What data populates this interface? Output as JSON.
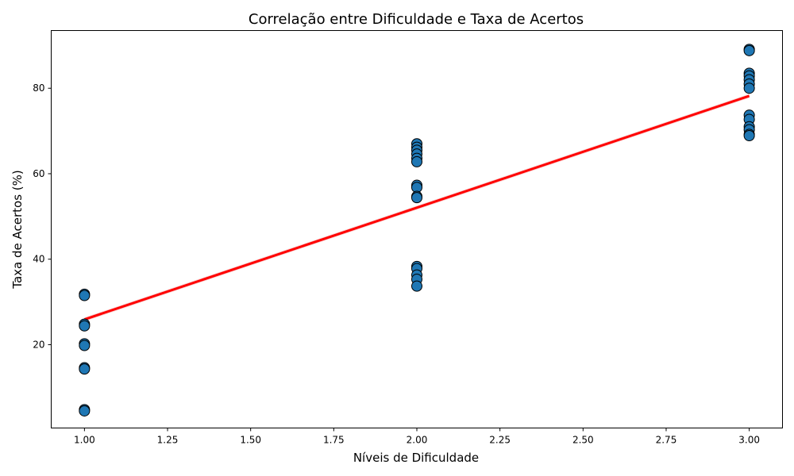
{
  "chart_data": {
    "type": "scatter",
    "title": "Correlação entre Dificuldade e Taxa de Acertos",
    "xlabel": "Níveis de Dificuldade",
    "ylabel": "Taxa de Acertos (%)",
    "xlim": [
      0.9,
      3.1
    ],
    "ylim": [
      0.5,
      93.5
    ],
    "xticks": [
      "1.00",
      "1.25",
      "1.50",
      "1.75",
      "2.00",
      "2.25",
      "2.50",
      "2.75",
      "3.00"
    ],
    "yticks": [
      "20",
      "40",
      "60",
      "80"
    ],
    "grid": false,
    "legend": "none",
    "colors": {
      "points": "#1f77b4",
      "point_edge": "#000000",
      "regression": "#ff0000",
      "confidence_band": "#f4b6b6"
    },
    "points": [
      {
        "x": 1,
        "y": 31.8
      },
      {
        "x": 1,
        "y": 31.5
      },
      {
        "x": 1,
        "y": 24.8
      },
      {
        "x": 1,
        "y": 24.4
      },
      {
        "x": 1,
        "y": 20.2
      },
      {
        "x": 1,
        "y": 19.8
      },
      {
        "x": 1,
        "y": 14.6
      },
      {
        "x": 1,
        "y": 14.3
      },
      {
        "x": 1,
        "y": 4.8
      },
      {
        "x": 1,
        "y": 4.5
      },
      {
        "x": 2,
        "y": 67.0
      },
      {
        "x": 2,
        "y": 66.2
      },
      {
        "x": 2,
        "y": 65.5
      },
      {
        "x": 2,
        "y": 64.6
      },
      {
        "x": 2,
        "y": 63.6
      },
      {
        "x": 2,
        "y": 62.8
      },
      {
        "x": 2,
        "y": 57.3
      },
      {
        "x": 2,
        "y": 56.8
      },
      {
        "x": 2,
        "y": 54.7
      },
      {
        "x": 2,
        "y": 54.4
      },
      {
        "x": 2,
        "y": 38.3
      },
      {
        "x": 2,
        "y": 37.8
      },
      {
        "x": 2,
        "y": 36.3
      },
      {
        "x": 2,
        "y": 35.3
      },
      {
        "x": 2,
        "y": 33.7
      },
      {
        "x": 3,
        "y": 89.1
      },
      {
        "x": 3,
        "y": 88.8
      },
      {
        "x": 3,
        "y": 83.5
      },
      {
        "x": 3,
        "y": 82.9
      },
      {
        "x": 3,
        "y": 82.0
      },
      {
        "x": 3,
        "y": 81.0
      },
      {
        "x": 3,
        "y": 80.0
      },
      {
        "x": 3,
        "y": 73.7
      },
      {
        "x": 3,
        "y": 72.7
      },
      {
        "x": 3,
        "y": 71.0
      },
      {
        "x": 3,
        "y": 70.3
      },
      {
        "x": 3,
        "y": 69.2
      },
      {
        "x": 3,
        "y": 68.9
      }
    ],
    "regression": {
      "x": [
        1,
        3
      ],
      "y": [
        25.9,
        78.2
      ]
    }
  }
}
